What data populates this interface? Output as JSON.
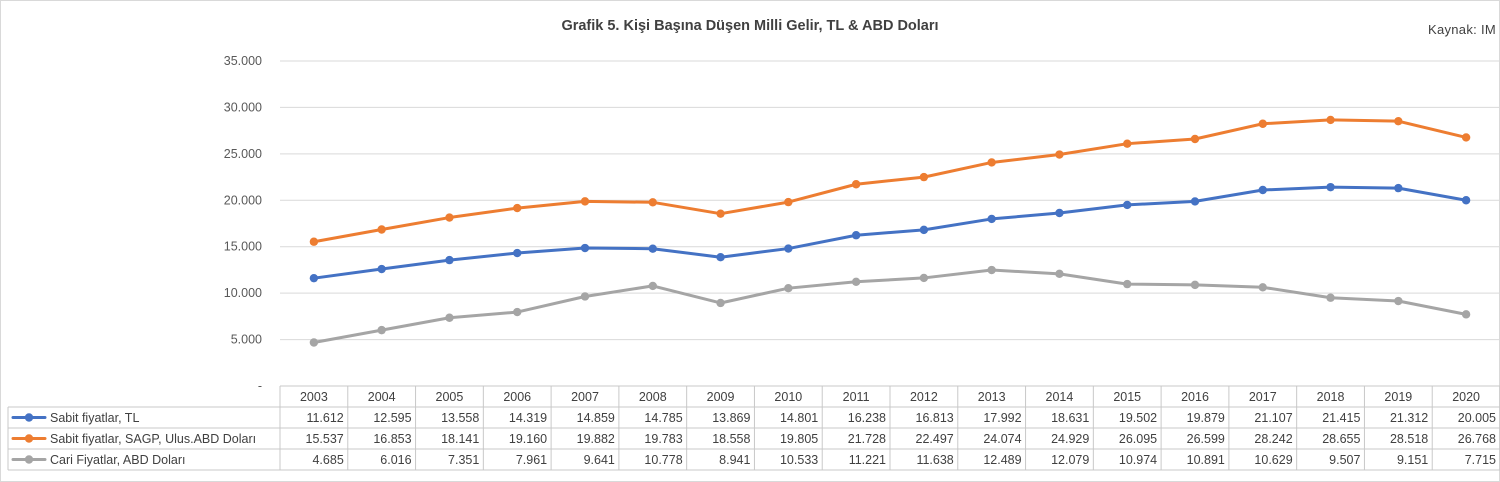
{
  "chart_data": {
    "type": "line",
    "title": "Grafik 5. Kişi Başına Düşen Milli Gelir, TL & ABD Doları",
    "source": "Kaynak: IM",
    "x": [
      "2003",
      "2004",
      "2005",
      "2006",
      "2007",
      "2008",
      "2009",
      "2010",
      "2011",
      "2012",
      "2013",
      "2014",
      "2015",
      "2016",
      "2017",
      "2018",
      "2019",
      "2020"
    ],
    "ylim": [
      0,
      35000
    ],
    "yticks": [
      "-",
      "5.000",
      "10.000",
      "15.000",
      "20.000",
      "25.000",
      "30.000",
      "35.000"
    ],
    "grid": true,
    "legend": "data-table-rows",
    "series": [
      {
        "name": "Sabit fiyatlar, TL",
        "color": "#4472c4",
        "values": [
          11612,
          12595,
          13558,
          14319,
          14859,
          14785,
          13869,
          14801,
          16238,
          16813,
          17992,
          18631,
          19502,
          19879,
          21107,
          21415,
          21312,
          20005
        ],
        "labels": [
          "11.612",
          "12.595",
          "13.558",
          "14.319",
          "14.859",
          "14.785",
          "13.869",
          "14.801",
          "16.238",
          "16.813",
          "17.992",
          "18.631",
          "19.502",
          "19.879",
          "21.107",
          "21.415",
          "21.312",
          "20.005"
        ]
      },
      {
        "name": "Sabit fiyatlar, SAGP, Ulus.ABD Doları",
        "color": "#ed7d31",
        "values": [
          15537,
          16853,
          18141,
          19160,
          19882,
          19783,
          18558,
          19805,
          21728,
          22497,
          24074,
          24929,
          26095,
          26599,
          28242,
          28655,
          28518,
          26768
        ],
        "labels": [
          "15.537",
          "16.853",
          "18.141",
          "19.160",
          "19.882",
          "19.783",
          "18.558",
          "19.805",
          "21.728",
          "22.497",
          "24.074",
          "24.929",
          "26.095",
          "26.599",
          "28.242",
          "28.655",
          "28.518",
          "26.768"
        ]
      },
      {
        "name": "Cari Fiyatlar, ABD Doları",
        "color": "#a5a5a5",
        "values": [
          4685,
          6016,
          7351,
          7961,
          9641,
          10778,
          8941,
          10533,
          11221,
          11638,
          12489,
          12079,
          10974,
          10891,
          10629,
          9507,
          9151,
          7715
        ],
        "labels": [
          "4.685",
          "6.016",
          "7.351",
          "7.961",
          "9.641",
          "10.778",
          "8.941",
          "10.533",
          "11.221",
          "11.638",
          "12.489",
          "12.079",
          "10.974",
          "10.891",
          "10.629",
          "9.507",
          "9.151",
          "7.715"
        ]
      }
    ]
  }
}
